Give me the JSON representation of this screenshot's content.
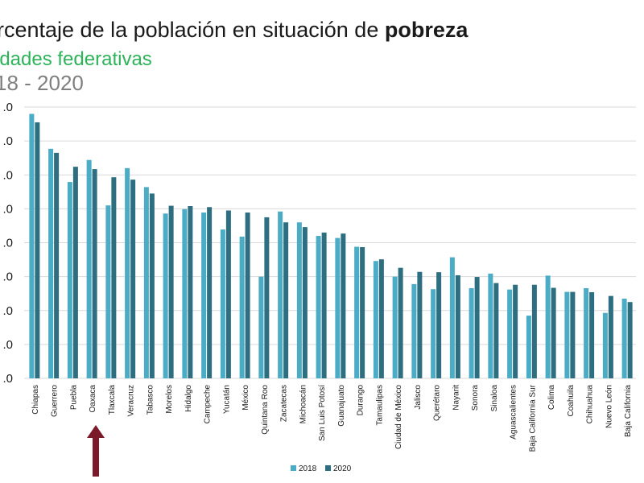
{
  "title": {
    "prefix": "rcentaje de la población en situación de ",
    "bold": "pobreza",
    "subtitle": "idades federativas",
    "years": "18 - 2020"
  },
  "colors": {
    "s2018": "#4bacc6",
    "s2020": "#2d6f80",
    "grid": "#d9d9d9",
    "arrow": "#7b1b2a"
  },
  "chart_data": {
    "type": "bar",
    "ytick_labels": [
      ".0",
      ".0",
      ".0",
      ".0",
      ".0",
      ".0",
      ".0",
      ".0",
      ".0"
    ],
    "categories": [
      "Chiapas",
      "Guerrero",
      "Puebla",
      "Oaxaca",
      "Tlaxcala",
      "Veracruz",
      "Tabasco",
      "Morelos",
      "Hidalgo",
      "Campeche",
      "Yucatán",
      "México",
      "Quintana Roo",
      "Zacatecas",
      "Michoacán",
      "San Luis Potosí",
      "Guanajuato",
      "Durango",
      "Tamaulipas",
      "Ciudad de México",
      "Jalisco",
      "Querétaro",
      "Nayarit",
      "Sonora",
      "Sinaloa",
      "Aguascalientes",
      "Baja California Sur",
      "Colima",
      "Coahuila",
      "Chihuahua",
      "Nuevo León",
      "Baja California"
    ],
    "series": [
      {
        "name": "2018",
        "values": [
          78.0,
          67.7,
          57.9,
          64.4,
          51.0,
          62.0,
          56.4,
          48.6,
          49.9,
          48.9,
          43.9,
          41.8,
          30.0,
          49.2,
          46.0,
          42.0,
          41.4,
          38.8,
          34.6,
          30.0,
          27.8,
          26.3,
          35.7,
          26.6,
          30.9,
          26.2,
          18.5,
          30.3,
          25.5,
          26.6,
          19.3,
          23.5
        ]
      },
      {
        "name": "2020",
        "values": [
          75.5,
          66.5,
          62.4,
          61.7,
          59.3,
          58.6,
          54.5,
          50.9,
          50.8,
          50.5,
          49.5,
          48.9,
          47.5,
          46.0,
          44.6,
          43.0,
          42.7,
          38.7,
          35.1,
          32.6,
          31.4,
          31.3,
          30.4,
          29.9,
          28.1,
          27.6,
          27.6,
          26.7,
          25.5,
          25.4,
          24.3,
          22.5
        ]
      }
    ],
    "ylim": [
      0,
      80
    ],
    "grid": true,
    "legend_position": "bottom-center"
  }
}
